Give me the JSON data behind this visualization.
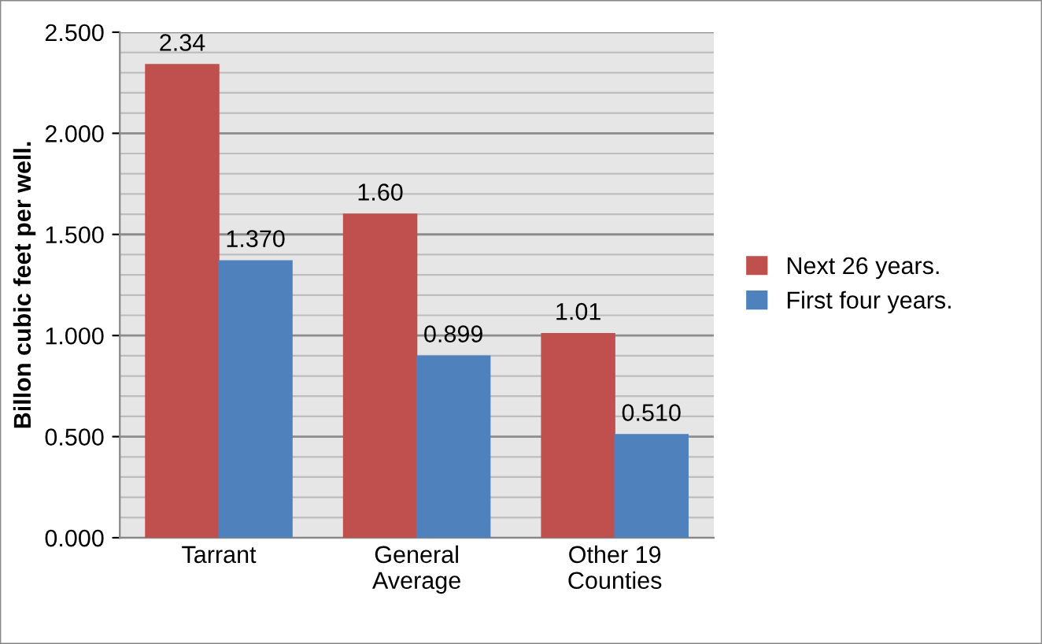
{
  "chart_data": {
    "type": "bar",
    "ylabel": "Billon cubic feet per well.",
    "categories": [
      "Tarrant",
      "General\nAverage",
      "Other 19\nCounties"
    ],
    "series": [
      {
        "name": "Next 26 years.",
        "color": "#c0504d",
        "values": [
          2.34,
          1.6,
          1.01
        ],
        "value_labels": [
          "2.34",
          "1.60",
          "1.01"
        ]
      },
      {
        "name": "First four years.",
        "color": "#4f81bd",
        "values": [
          1.37,
          0.899,
          0.51
        ],
        "value_labels": [
          "1.370",
          "0.899",
          "0.510"
        ]
      }
    ],
    "ylim": [
      0,
      2.5
    ],
    "yticks": [
      {
        "value": 0,
        "label": "0.000"
      },
      {
        "value": 0.5,
        "label": "0.500"
      },
      {
        "value": 1,
        "label": "1.000"
      },
      {
        "value": 1.5,
        "label": "1.500"
      },
      {
        "value": 2,
        "label": "2.000"
      },
      {
        "value": 2.5,
        "label": "2.500"
      }
    ],
    "grid": "y",
    "legend": "right"
  }
}
